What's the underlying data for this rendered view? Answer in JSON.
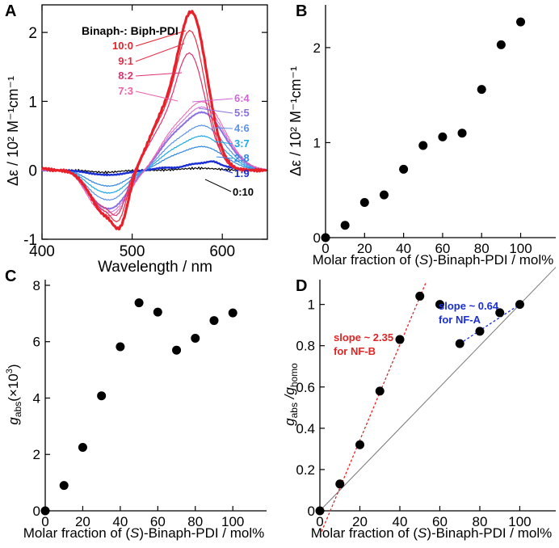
{
  "figure": {
    "panel_labels": [
      "A",
      "B",
      "C",
      "D"
    ]
  },
  "chart_data": [
    {
      "panel": "A",
      "type": "line",
      "xlabel": "Wavelength / nm",
      "ylabel_text": "Δε / 10² M⁻¹cm⁻¹",
      "xlim": [
        400,
        650
      ],
      "ylim": [
        -1,
        2.4
      ],
      "xticks": [
        "400",
        "500",
        "600"
      ],
      "yticks": [
        "-1",
        "0",
        "1",
        "2"
      ],
      "legend_title": "Binaph-: Biph-PDI",
      "series": [
        {
          "name": "10:0",
          "color": "#e8202a",
          "scale": 1.0,
          "width": 3.2
        },
        {
          "name": "9:1",
          "color": "#e42e45",
          "scale": 0.9,
          "width": 1.2
        },
        {
          "name": "8:2",
          "color": "#e0306e",
          "scale": 0.7,
          "width": 1.2
        },
        {
          "name": "7:3",
          "color": "#ec5fa8",
          "scale": 0.52,
          "width": 1.0
        },
        {
          "name": "6:4",
          "color": "#d066d6",
          "scale": 0.48,
          "width": 1.0
        },
        {
          "name": "5:5",
          "color": "#8a6fe0",
          "scale": 0.44,
          "width": 2.0
        },
        {
          "name": "4:6",
          "color": "#5b92ea",
          "scale": 0.34,
          "width": 1.2
        },
        {
          "name": "3:7",
          "color": "#1aa9e6",
          "scale": 0.26,
          "width": 1.2
        },
        {
          "name": "2:8",
          "color": "#2f87e3",
          "scale": 0.18,
          "width": 1.2
        },
        {
          "name": "1:9",
          "color": "#1a2ed6",
          "scale": 0.06,
          "width": 2.4
        },
        {
          "name": "0:10",
          "color": "#000000",
          "scale": 0.0,
          "width": 1.2
        }
      ]
    },
    {
      "panel": "B",
      "type": "scatter",
      "xlabel_parts": [
        "Molar fraction of (",
        "S",
        ")-Binaph-PDI / mol%"
      ],
      "ylabel_text": "Δε / 10² M⁻¹cm⁻¹",
      "xlim": [
        0,
        118
      ],
      "ylim": [
        0,
        2.45
      ],
      "xticks": [
        "0",
        "20",
        "40",
        "60",
        "80",
        "100"
      ],
      "yticks": [
        "0",
        "1",
        "2"
      ],
      "x": [
        0,
        10,
        20,
        30,
        40,
        50,
        60,
        70,
        80,
        90,
        100
      ],
      "y": [
        0.0,
        0.13,
        0.37,
        0.45,
        0.72,
        0.97,
        1.06,
        1.1,
        1.56,
        2.03,
        2.27
      ]
    },
    {
      "panel": "C",
      "type": "scatter",
      "xlabel_parts": [
        "Molar fraction of (",
        "S",
        ")-Binaph-PDI / mol%"
      ],
      "ylabel_parts": [
        "g",
        "abs",
        "(×10",
        "3",
        ")"
      ],
      "xlim": [
        0,
        118
      ],
      "ylim": [
        0,
        8.2
      ],
      "xticks": [
        "0",
        "20",
        "40",
        "60",
        "80",
        "100"
      ],
      "yticks": [
        "0",
        "2",
        "4",
        "6",
        "8"
      ],
      "x": [
        0,
        10,
        20,
        30,
        40,
        50,
        60,
        70,
        80,
        90,
        100
      ],
      "y": [
        0.0,
        0.9,
        2.25,
        4.08,
        5.82,
        7.38,
        7.05,
        5.7,
        6.12,
        6.75,
        7.02
      ]
    },
    {
      "panel": "D",
      "type": "scatter",
      "xlabel_parts": [
        "Molar fraction of (",
        "S",
        ")-Binaph-PDI / mol%"
      ],
      "ylabel_parts": [
        "g",
        "abs",
        " /g",
        "homo"
      ],
      "xlim": [
        0,
        118
      ],
      "ylim": [
        0,
        1.12
      ],
      "xticks": [
        "0",
        "20",
        "40",
        "60",
        "80",
        "100"
      ],
      "yticks": [
        "0",
        "0.2",
        "0.4",
        "0.6",
        "0.8",
        "1"
      ],
      "x": [
        0,
        10,
        20,
        30,
        40,
        50,
        60,
        70,
        80,
        90,
        100
      ],
      "y": [
        0.0,
        0.13,
        0.32,
        0.58,
        0.83,
        1.04,
        1.0,
        0.81,
        0.87,
        0.96,
        1.0
      ],
      "diagonal": true,
      "fits": [
        {
          "label_line1": "slope ~ 2.35",
          "label_line2": "for NF-B",
          "color": "#e32222",
          "from": [
            0,
            -0.12
          ],
          "to": [
            53,
            1.105
          ]
        },
        {
          "label_line1": "slope ~ 0.64",
          "label_line2": "for NF-A",
          "color": "#1a2ed6",
          "from": [
            70,
            0.81
          ],
          "to": [
            100,
            1.0
          ]
        }
      ]
    }
  ]
}
